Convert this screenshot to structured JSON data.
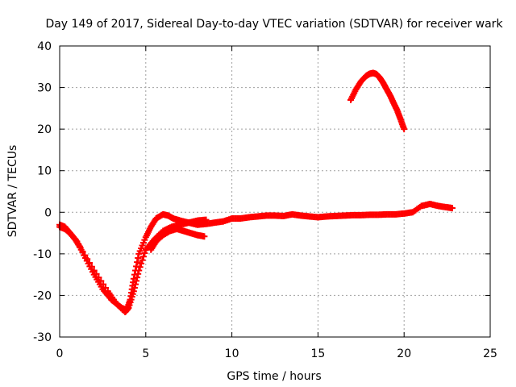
{
  "chart_data": {
    "type": "scatter",
    "title": "Day 149 of 2017, Sidereal Day-to-day VTEC variation (SDTVAR) for receiver wark",
    "xlabel": "GPS time / hours",
    "ylabel": "SDTVAR / TECUs",
    "xlim": [
      0,
      25
    ],
    "ylim": [
      -30,
      40
    ],
    "xticks": [
      0,
      5,
      10,
      15,
      20,
      25
    ],
    "yticks": [
      -30,
      -20,
      -10,
      0,
      10,
      20,
      30,
      40
    ],
    "xtick_labels": [
      "0",
      "5",
      "10",
      "15",
      "20",
      "25"
    ],
    "ytick_labels": [
      "-30",
      "-20",
      "-10",
      "0",
      "10",
      "20",
      "30",
      "40"
    ],
    "grid": true,
    "marker": "+",
    "color": "#ff0000",
    "series": [
      {
        "name": "main-track",
        "x": [
          0.0,
          0.3,
          0.6,
          1.0,
          1.5,
          2.0,
          2.5,
          3.0,
          3.3,
          3.6,
          3.9,
          4.1,
          4.3,
          4.6,
          5.0,
          5.3,
          5.6,
          6.0,
          6.3,
          6.6,
          7.0,
          7.5,
          8.0,
          8.5,
          9.0,
          9.5,
          10.0,
          10.5,
          11.0,
          11.5,
          12.0,
          12.5,
          13.0,
          13.5,
          14.0,
          14.5,
          15.0,
          15.5,
          16.0,
          16.5,
          17.0,
          17.5,
          18.0,
          18.5,
          19.0,
          19.5,
          20.0,
          20.5,
          21.0,
          21.5,
          22.0,
          22.5,
          22.8
        ],
        "y": [
          -3.5,
          -4,
          -5,
          -7,
          -11,
          -15,
          -18.5,
          -21,
          -22,
          -23,
          -23.5,
          -21,
          -16,
          -10,
          -6,
          -3.5,
          -1.5,
          -0.5,
          -0.8,
          -1.5,
          -2,
          -2.5,
          -3,
          -2.8,
          -2.5,
          -2.2,
          -1.5,
          -1.5,
          -1.2,
          -1.0,
          -0.8,
          -0.8,
          -0.9,
          -0.5,
          -0.8,
          -1.0,
          -1.2,
          -1.0,
          -0.9,
          -0.8,
          -0.7,
          -0.7,
          -0.6,
          -0.6,
          -0.5,
          -0.5,
          -0.3,
          0.0,
          1.5,
          2.0,
          1.5,
          1.2,
          1.0
        ]
      },
      {
        "name": "secondary-track",
        "x": [
          0.0,
          0.3,
          0.6,
          0.9,
          1.2,
          2.0,
          2.8,
          3.3,
          3.8,
          4.0,
          4.3,
          4.6,
          5.0,
          5.5,
          6.0,
          6.5,
          7.0,
          7.5,
          8.0,
          8.5
        ],
        "y": [
          -3,
          -3.5,
          -5,
          -6.5,
          -8.5,
          -14,
          -19,
          -22,
          -24,
          -23,
          -19,
          -14,
          -9,
          -6.5,
          -4.5,
          -3.5,
          -3,
          -2.5,
          -2,
          -1.8
        ]
      },
      {
        "name": "branch-track",
        "x": [
          5.3,
          5.6,
          6.0,
          6.4,
          6.8,
          7.2,
          7.6,
          8.0,
          8.4
        ],
        "y": [
          -9,
          -7,
          -5.5,
          -4.5,
          -4,
          -4.5,
          -5,
          -5.5,
          -5.8
        ]
      },
      {
        "name": "upper-arc",
        "x": [
          16.9,
          17.2,
          17.5,
          17.8,
          18.0,
          18.2,
          18.4,
          18.6,
          18.8,
          19.0,
          19.2,
          19.4,
          19.6,
          19.8,
          20.0
        ],
        "y": [
          27,
          29.5,
          31.5,
          32.8,
          33.3,
          33.5,
          33.2,
          32.3,
          31.0,
          29.5,
          28.0,
          26.2,
          24.5,
          22.3,
          20.0
        ]
      }
    ]
  }
}
